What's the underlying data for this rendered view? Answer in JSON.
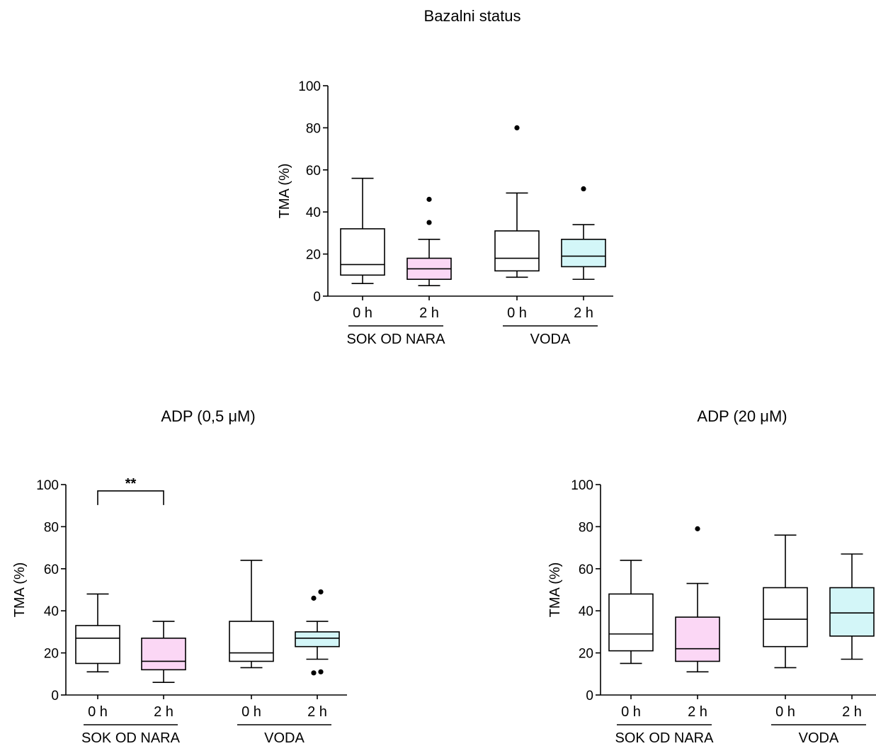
{
  "colors": {
    "axis": "#000000",
    "box_plain": "#ffffff",
    "box_pink": "#fbd7f5",
    "box_cyan": "#d3f6f8",
    "outlier": "#000000"
  },
  "chart_data": [
    {
      "type": "box",
      "title": "Bazalni status",
      "ylabel": "TMA (%)",
      "ylim": [
        0,
        100
      ],
      "yticks": [
        "0",
        "20",
        "40",
        "60",
        "80",
        "100"
      ],
      "groups": [
        {
          "label": "SOK OD NARA",
          "timepoints": [
            "0 h",
            "2 h"
          ]
        },
        {
          "label": "VODA",
          "timepoints": [
            "0 h",
            "2 h"
          ]
        }
      ],
      "boxes": [
        {
          "group": "SOK OD NARA",
          "time": "0 h",
          "fill": "plain",
          "whisker_low": 6,
          "q1": 10,
          "median": 15,
          "q3": 32,
          "whisker_high": 56,
          "outliers": []
        },
        {
          "group": "SOK OD NARA",
          "time": "2 h",
          "fill": "pink",
          "whisker_low": 5,
          "q1": 8,
          "median": 13,
          "q3": 18,
          "whisker_high": 27,
          "outliers": [
            35,
            46
          ]
        },
        {
          "group": "VODA",
          "time": "0 h",
          "fill": "plain",
          "whisker_low": 9,
          "q1": 12,
          "median": 18,
          "q3": 31,
          "whisker_high": 49,
          "outliers": [
            80
          ]
        },
        {
          "group": "VODA",
          "time": "2 h",
          "fill": "cyan",
          "whisker_low": 8,
          "q1": 14,
          "median": 19,
          "q3": 27,
          "whisker_high": 34,
          "outliers": [
            51
          ]
        }
      ],
      "annotations": []
    },
    {
      "type": "box",
      "title": "ADP (0,5 μM)",
      "ylabel": "TMA (%)",
      "ylim": [
        0,
        100
      ],
      "yticks": [
        "0",
        "20",
        "40",
        "60",
        "80",
        "100"
      ],
      "groups": [
        {
          "label": "SOK OD NARA",
          "timepoints": [
            "0 h",
            "2 h"
          ]
        },
        {
          "label": "VODA",
          "timepoints": [
            "0 h",
            "2 h"
          ]
        }
      ],
      "boxes": [
        {
          "group": "SOK OD NARA",
          "time": "0 h",
          "fill": "plain",
          "whisker_low": 11,
          "q1": 15,
          "median": 27,
          "q3": 33,
          "whisker_high": 48,
          "outliers": []
        },
        {
          "group": "SOK OD NARA",
          "time": "2 h",
          "fill": "pink",
          "whisker_low": 6,
          "q1": 12,
          "median": 16,
          "q3": 27,
          "whisker_high": 35,
          "outliers": []
        },
        {
          "group": "VODA",
          "time": "0 h",
          "fill": "plain",
          "whisker_low": 13,
          "q1": 16,
          "median": 20,
          "q3": 35,
          "whisker_high": 64,
          "outliers": []
        },
        {
          "group": "VODA",
          "time": "2 h",
          "fill": "cyan",
          "whisker_low": 17,
          "q1": 23,
          "median": 27,
          "q3": 30,
          "whisker_high": 35,
          "outliers": [
            10.5,
            11,
            46,
            49
          ]
        }
      ],
      "annotations": [
        {
          "text": "**",
          "from": 0,
          "to": 1,
          "y": 97
        }
      ]
    },
    {
      "type": "box",
      "title": "ADP (20 μM)",
      "ylabel": "TMA (%)",
      "ylim": [
        0,
        100
      ],
      "yticks": [
        "0",
        "20",
        "40",
        "60",
        "80",
        "100"
      ],
      "groups": [
        {
          "label": "SOK OD NARA",
          "timepoints": [
            "0 h",
            "2 h"
          ]
        },
        {
          "label": "VODA",
          "timepoints": [
            "0 h",
            "2 h"
          ]
        }
      ],
      "boxes": [
        {
          "group": "SOK OD NARA",
          "time": "0 h",
          "fill": "plain",
          "whisker_low": 15,
          "q1": 21,
          "median": 29,
          "q3": 48,
          "whisker_high": 64,
          "outliers": []
        },
        {
          "group": "SOK OD NARA",
          "time": "2 h",
          "fill": "pink",
          "whisker_low": 11,
          "q1": 16,
          "median": 22,
          "q3": 37,
          "whisker_high": 53,
          "outliers": [
            79
          ]
        },
        {
          "group": "VODA",
          "time": "0 h",
          "fill": "plain",
          "whisker_low": 13,
          "q1": 23,
          "median": 36,
          "q3": 51,
          "whisker_high": 76,
          "outliers": []
        },
        {
          "group": "VODA",
          "time": "2 h",
          "fill": "cyan",
          "whisker_low": 17,
          "q1": 28,
          "median": 39,
          "q3": 51,
          "whisker_high": 67,
          "outliers": []
        }
      ],
      "annotations": []
    }
  ]
}
